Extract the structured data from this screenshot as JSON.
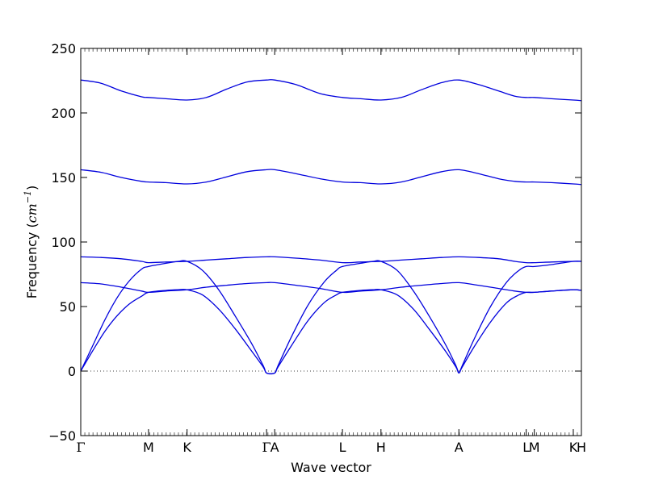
{
  "chart_data": {
    "type": "line",
    "title": "",
    "xlabel": "Wave vector",
    "ylabel": {
      "prefix": "Frequency (",
      "unit_base": "cm",
      "unit_exp": "−1",
      "suffix": ")"
    },
    "ylim": [
      -50,
      250
    ],
    "yticks": [
      -50,
      0,
      50,
      100,
      150,
      200,
      250
    ],
    "xlim": [
      0,
      12.34
    ],
    "high_symmetry_points": [
      {
        "label": "Γ",
        "x": 0.0,
        "greek": true
      },
      {
        "label": "M",
        "x": 1.67
      },
      {
        "label": "K",
        "x": 2.62
      },
      {
        "label": "Γ",
        "x": 4.58,
        "greek": true
      },
      {
        "label": "A",
        "x": 4.78
      },
      {
        "label": "L",
        "x": 6.45
      },
      {
        "label": "H",
        "x": 7.4
      },
      {
        "label": "A",
        "x": 9.32
      },
      {
        "label": "L",
        "x": 10.98
      },
      {
        "label": "M",
        "x": 11.18
      },
      {
        "label": "K",
        "x": 12.14
      },
      {
        "label": "H",
        "x": 12.34
      }
    ],
    "minor_tick_count": 123,
    "zero_line": true,
    "line_color": "#0000dd",
    "series": [
      {
        "x": [
          0,
          0.5,
          1.0,
          1.5,
          1.67,
          2.1,
          2.62,
          3.1,
          3.6,
          4.1,
          4.58,
          4.78,
          5.3,
          5.9,
          6.45,
          6.9,
          7.4,
          7.9,
          8.4,
          8.9,
          9.32,
          9.8,
          10.3,
          10.7,
          10.98,
          11.18,
          11.6,
          12.14,
          12.34
        ],
        "y": [
          225.5,
          223,
          217,
          212.5,
          212,
          211,
          210,
          212,
          218.5,
          224,
          225.5,
          225.5,
          222,
          215,
          212,
          211,
          210,
          212,
          218,
          223.5,
          225.5,
          222,
          217,
          213,
          212,
          212,
          211,
          210,
          209.5
        ]
      },
      {
        "x": [
          0,
          0.5,
          1.0,
          1.5,
          1.67,
          2.1,
          2.62,
          3.1,
          3.6,
          4.1,
          4.58,
          4.78,
          5.3,
          5.9,
          6.45,
          6.9,
          7.4,
          7.9,
          8.4,
          8.9,
          9.32,
          9.8,
          10.3,
          10.7,
          10.98,
          11.18,
          11.6,
          12.14,
          12.34
        ],
        "y": [
          156,
          154,
          150,
          147,
          146.5,
          146,
          145,
          146.5,
          150.5,
          154.5,
          156,
          156,
          153,
          149,
          146.5,
          146,
          145,
          146.5,
          150.5,
          154.5,
          156,
          153,
          149,
          147,
          146.5,
          146.5,
          146,
          145,
          144.5
        ]
      },
      {
        "x": [
          0,
          0.5,
          1.0,
          1.5,
          1.67,
          2.1,
          2.62,
          3.1,
          3.6,
          4.1,
          4.58,
          4.78,
          5.3,
          5.9,
          6.45,
          6.9,
          7.4,
          7.9,
          8.4,
          8.9,
          9.32,
          9.8,
          10.3,
          10.7,
          10.98,
          11.18,
          11.6,
          12.14,
          12.34
        ],
        "y": [
          88.5,
          88,
          87,
          85,
          84,
          84.5,
          85,
          86,
          87,
          88,
          88.5,
          88.5,
          87.5,
          86,
          84,
          84.5,
          85,
          86,
          87,
          88,
          88.5,
          88,
          87,
          85,
          84,
          84,
          84.5,
          85,
          85
        ]
      },
      {
        "x": [
          0,
          0.5,
          1.0,
          1.5,
          1.67,
          2.1,
          2.62,
          3.1,
          3.6,
          4.1,
          4.58,
          4.78,
          5.3,
          5.9,
          6.45,
          6.9,
          7.4,
          7.9,
          8.4,
          8.9,
          9.32,
          9.8,
          10.3,
          10.7,
          10.98,
          11.18,
          11.6,
          12.14,
          12.34
        ],
        "y": [
          68.5,
          67.5,
          65,
          62,
          61,
          62,
          63,
          65,
          66.5,
          67.8,
          68.5,
          68.5,
          66.5,
          64,
          61,
          62,
          63,
          65,
          66.5,
          67.8,
          68.5,
          66.5,
          64,
          62,
          61,
          61,
          62,
          63,
          62.5
        ]
      },
      {
        "x": [
          0,
          0.3,
          0.6,
          0.9,
          1.2,
          1.5,
          1.67,
          2.1,
          2.4,
          2.62,
          3.0,
          3.4,
          3.8,
          4.2,
          4.5,
          4.58,
          4.78,
          4.86,
          5.2,
          5.6,
          6.0,
          6.3,
          6.45,
          6.9,
          7.2,
          7.4,
          7.8,
          8.2,
          8.6,
          9.0,
          9.25,
          9.32,
          9.4,
          9.7,
          10.1,
          10.5,
          10.8,
          10.98,
          11.18,
          11.6,
          12.14,
          12.34
        ],
        "y": [
          0,
          20,
          40,
          57,
          70,
          79,
          81,
          83.5,
          85,
          85,
          78,
          63,
          43,
          22,
          4,
          -1.5,
          -1.5,
          4,
          27,
          51,
          69,
          78,
          81,
          83.5,
          85,
          85,
          78,
          62,
          42,
          20,
          4,
          -1.5,
          4,
          25,
          50,
          69,
          78,
          81,
          81,
          82.5,
          85,
          85
        ]
      },
      {
        "x": [
          0,
          0.3,
          0.6,
          0.9,
          1.2,
          1.5,
          1.67,
          2.1,
          2.4,
          2.62,
          3.0,
          3.4,
          3.8,
          4.2,
          4.5,
          4.58,
          4.78,
          4.86,
          5.2,
          5.6,
          6.0,
          6.3,
          6.45,
          6.9,
          7.2,
          7.4,
          7.8,
          8.2,
          8.6,
          9.0,
          9.25,
          9.32,
          9.4,
          9.7,
          10.1,
          10.5,
          10.8,
          10.98,
          11.18,
          11.6,
          12.14,
          12.34
        ],
        "y": [
          0,
          16,
          31,
          43,
          52,
          58,
          61,
          62.5,
          63,
          63,
          59,
          48,
          33,
          16,
          3,
          -1.5,
          -1.5,
          3,
          20,
          39,
          53,
          59,
          61,
          62.5,
          63,
          63,
          59,
          48,
          32,
          15,
          3,
          -1.5,
          3,
          19,
          38,
          53,
          59,
          61,
          61,
          62,
          63,
          62.5
        ]
      }
    ]
  }
}
